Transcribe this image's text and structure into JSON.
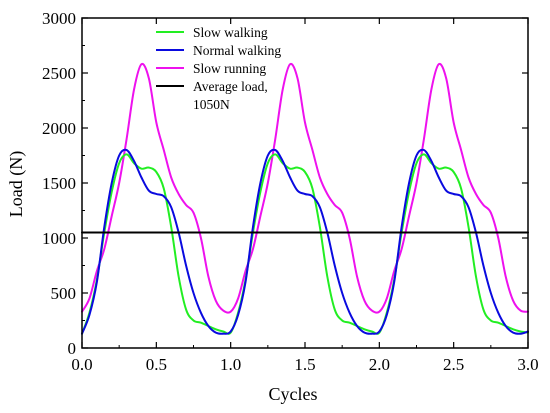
{
  "chart_data": {
    "type": "line",
    "title": "",
    "xlabel": "Cycles",
    "ylabel": "Load (N)",
    "xlim": [
      0.0,
      3.0
    ],
    "ylim": [
      0,
      3000
    ],
    "x_ticks": [
      0.0,
      0.5,
      1.0,
      1.5,
      2.0,
      2.5,
      3.0
    ],
    "x_tick_labels": [
      "0.0",
      "0.5",
      "1.0",
      "1.5",
      "2.0",
      "2.5",
      "3.0"
    ],
    "y_ticks": [
      0,
      500,
      1000,
      1500,
      2000,
      2500,
      3000
    ],
    "y_tick_labels": [
      "0",
      "500",
      "1000",
      "1500",
      "2000",
      "2500",
      "3000"
    ],
    "grid": false,
    "legend_position": "top-center",
    "series": [
      {
        "name": "Slow walking",
        "color": "#22ee22",
        "x": [
          0.0,
          0.05,
          0.1,
          0.15,
          0.2,
          0.25,
          0.3,
          0.35,
          0.4,
          0.45,
          0.5,
          0.55,
          0.6,
          0.65,
          0.7,
          0.75,
          0.8,
          0.85,
          0.9,
          0.95,
          1.0,
          1.05,
          1.1,
          1.15,
          1.2,
          1.25,
          1.3,
          1.35,
          1.4,
          1.45,
          1.5,
          1.55,
          1.6,
          1.65,
          1.7,
          1.75,
          1.8,
          1.85,
          1.9,
          1.95,
          2.0,
          2.05,
          2.1,
          2.15,
          2.2,
          2.25,
          2.3,
          2.35,
          2.4,
          2.45,
          2.5,
          2.55,
          2.6,
          2.65,
          2.7,
          2.75,
          2.8,
          2.85,
          2.9,
          2.95,
          3.0
        ],
        "y": [
          130,
          320,
          620,
          1050,
          1420,
          1680,
          1760,
          1680,
          1630,
          1640,
          1600,
          1450,
          1100,
          650,
          350,
          250,
          230,
          200,
          170,
          150,
          140,
          320,
          620,
          1050,
          1420,
          1680,
          1760,
          1680,
          1630,
          1640,
          1600,
          1450,
          1100,
          650,
          350,
          250,
          230,
          200,
          170,
          150,
          140,
          320,
          620,
          1050,
          1420,
          1680,
          1760,
          1680,
          1630,
          1640,
          1600,
          1450,
          1100,
          650,
          350,
          250,
          230,
          200,
          170,
          150,
          140
        ]
      },
      {
        "name": "Normal walking",
        "color": "#0a0adf",
        "x": [
          0.0,
          0.05,
          0.1,
          0.15,
          0.2,
          0.25,
          0.3,
          0.35,
          0.4,
          0.45,
          0.5,
          0.55,
          0.6,
          0.65,
          0.7,
          0.75,
          0.8,
          0.85,
          0.9,
          0.95,
          1.0,
          1.05,
          1.1,
          1.15,
          1.2,
          1.25,
          1.3,
          1.35,
          1.4,
          1.45,
          1.5,
          1.55,
          1.6,
          1.65,
          1.7,
          1.75,
          1.8,
          1.85,
          1.9,
          1.95,
          2.0,
          2.05,
          2.1,
          2.15,
          2.2,
          2.25,
          2.3,
          2.35,
          2.4,
          2.45,
          2.5,
          2.55,
          2.6,
          2.65,
          2.7,
          2.75,
          2.8,
          2.85,
          2.9,
          2.95,
          3.0
        ],
        "y": [
          130,
          300,
          600,
          1100,
          1500,
          1750,
          1800,
          1700,
          1550,
          1430,
          1400,
          1380,
          1280,
          1050,
          750,
          500,
          320,
          200,
          140,
          130,
          150,
          300,
          600,
          1100,
          1500,
          1750,
          1800,
          1700,
          1550,
          1430,
          1400,
          1380,
          1280,
          1050,
          750,
          500,
          320,
          200,
          140,
          130,
          150,
          300,
          600,
          1100,
          1500,
          1750,
          1800,
          1700,
          1550,
          1430,
          1400,
          1380,
          1280,
          1050,
          750,
          500,
          320,
          200,
          140,
          130,
          150
        ]
      },
      {
        "name": "Slow running",
        "color": "#ee11ee",
        "x": [
          0.0,
          0.05,
          0.1,
          0.15,
          0.2,
          0.25,
          0.3,
          0.35,
          0.4,
          0.45,
          0.5,
          0.55,
          0.6,
          0.65,
          0.7,
          0.75,
          0.8,
          0.85,
          0.9,
          0.95,
          1.0,
          1.05,
          1.1,
          1.15,
          1.2,
          1.25,
          1.3,
          1.35,
          1.4,
          1.45,
          1.5,
          1.55,
          1.6,
          1.65,
          1.7,
          1.75,
          1.8,
          1.85,
          1.9,
          1.95,
          2.0,
          2.05,
          2.1,
          2.15,
          2.2,
          2.25,
          2.3,
          2.35,
          2.4,
          2.45,
          2.5,
          2.55,
          2.6,
          2.65,
          2.7,
          2.75,
          2.8,
          2.85,
          2.9,
          2.95,
          3.0
        ],
        "y": [
          330,
          450,
          700,
          900,
          1200,
          1500,
          1900,
          2350,
          2580,
          2450,
          2050,
          1800,
          1550,
          1400,
          1300,
          1230,
          1000,
          650,
          430,
          340,
          330,
          450,
          700,
          900,
          1200,
          1500,
          1900,
          2350,
          2580,
          2450,
          2050,
          1800,
          1550,
          1400,
          1300,
          1230,
          1000,
          650,
          430,
          340,
          330,
          450,
          700,
          900,
          1200,
          1500,
          1900,
          2350,
          2580,
          2450,
          2050,
          1800,
          1550,
          1400,
          1300,
          1230,
          1000,
          650,
          430,
          340,
          330
        ]
      },
      {
        "name": "Average load, 1050N",
        "legend_lines": [
          "Average load,",
          "1050N"
        ],
        "color": "#000000",
        "x": [
          0.0,
          3.0
        ],
        "y": [
          1050,
          1050
        ]
      }
    ]
  }
}
